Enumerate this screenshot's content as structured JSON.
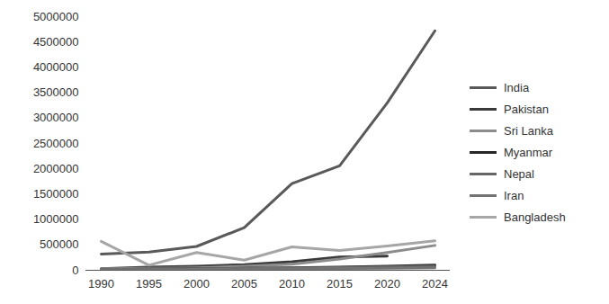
{
  "chart_data": {
    "type": "line",
    "categories": [
      "1990",
      "1995",
      "2000",
      "2005",
      "2010",
      "2015",
      "2020",
      "2024"
    ],
    "series": [
      {
        "name": "India",
        "color": "#595959",
        "values": [
          320000,
          360000,
          470000,
          840000,
          1710000,
          2060000,
          3300000,
          4720000
        ]
      },
      {
        "name": "Pakistan",
        "color": "#3a3a3a",
        "values": [
          30000,
          60000,
          80000,
          110000,
          170000,
          260000,
          280000,
          null
        ]
      },
      {
        "name": "Sri Lanka",
        "color": "#8c8c8c",
        "values": [
          30000,
          40000,
          50000,
          80000,
          120000,
          220000,
          350000,
          490000
        ]
      },
      {
        "name": "Myanmar",
        "color": "#262626",
        "values": [
          10000,
          20000,
          30000,
          40000,
          50000,
          60000,
          80000,
          100000
        ]
      },
      {
        "name": "Nepal",
        "color": "#666666",
        "values": [
          20000,
          25000,
          30000,
          35000,
          45000,
          55000,
          65000,
          80000
        ]
      },
      {
        "name": "Iran",
        "color": "#737373",
        "values": [
          10000,
          15000,
          20000,
          25000,
          30000,
          35000,
          40000,
          50000
        ]
      },
      {
        "name": "Bangladesh",
        "color": "#a6a6a6",
        "values": [
          570000,
          100000,
          350000,
          200000,
          460000,
          390000,
          480000,
          580000
        ]
      }
    ],
    "ylim": [
      0,
      5000000
    ],
    "yticks": [
      0,
      500000,
      1000000,
      1500000,
      2000000,
      2500000,
      3000000,
      3500000,
      4000000,
      4500000,
      5000000
    ],
    "grid": false,
    "legend": "right"
  }
}
